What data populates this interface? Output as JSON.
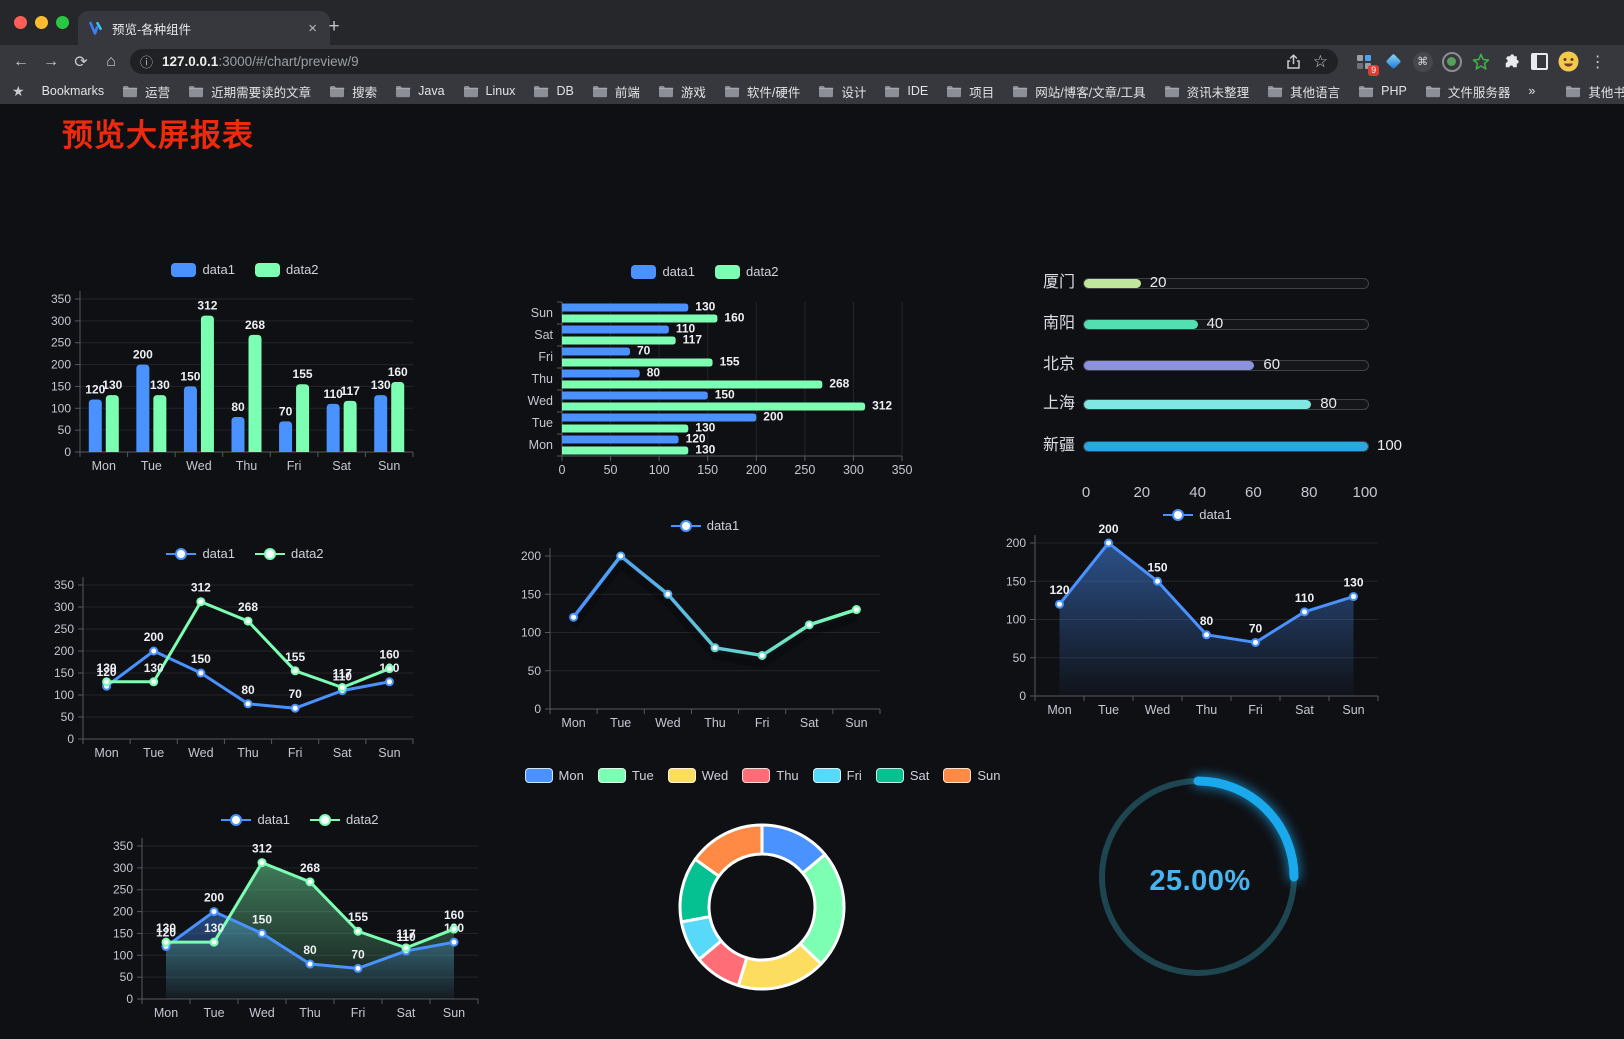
{
  "browser": {
    "window_controls": {
      "close": "#ff5f57",
      "minimize": "#febc2e",
      "maximize": "#28c840"
    },
    "tab": {
      "title": "预览-各种组件"
    },
    "toolbar": {
      "url_host": "127.0.0.1",
      "url_rest": ":3000/#/chart/preview/9"
    },
    "icons": {
      "back": "←",
      "forward": "→",
      "reload": "⟳",
      "home": "⌂",
      "info": "ⓘ",
      "close": "×",
      "new_tab": "+",
      "menu": "⋮",
      "command": "⌘",
      "bookmarks_star": "★",
      "bookmark_this_star": "☆",
      "extension_badge": "9",
      "overflow": "»"
    },
    "bookmarks": {
      "label": "Bookmarks",
      "folders": [
        "运营",
        "近期需要读的文章",
        "搜索",
        "Java",
        "Linux",
        "DB",
        "前端",
        "游戏",
        "软件/硬件",
        "设计",
        "IDE",
        "项目",
        "网站/博客/文章/工具",
        "资讯未整理",
        "其他语言",
        "PHP",
        "文件服务器"
      ],
      "overflow": "»",
      "other": "其他书签"
    }
  },
  "page": {
    "title": "预览大屏报表",
    "title_color": "#ee2a0c",
    "background": "#0f1014"
  },
  "colors": {
    "palette": [
      "#4992ff",
      "#7cffb2",
      "#fddd60",
      "#ff6e76",
      "#58d9f9",
      "#05c091",
      "#ff8a45"
    ],
    "axis_text": "#c6c7d1",
    "value_label": "#eef0f6"
  },
  "chart_data": [
    {
      "type": "bar",
      "legend_position": "top",
      "grid": true,
      "categories": [
        "Mon",
        "Tue",
        "Wed",
        "Thu",
        "Fri",
        "Sat",
        "Sun"
      ],
      "series": [
        {
          "name": "data1",
          "color": "#4992ff",
          "values": [
            120,
            200,
            150,
            80,
            70,
            110,
            130
          ]
        },
        {
          "name": "data2",
          "color": "#7cffb2",
          "values": [
            130,
            130,
            312,
            268,
            155,
            117,
            160
          ]
        }
      ],
      "ylim": [
        0,
        350
      ],
      "yticks": [
        0,
        50,
        100,
        150,
        200,
        250,
        300,
        350
      ]
    },
    {
      "type": "bar",
      "orientation": "horizontal",
      "legend_position": "top",
      "grid": true,
      "categories_top_to_bottom": [
        "Sun",
        "Sat",
        "Fri",
        "Thu",
        "Wed",
        "Tue",
        "Mon"
      ],
      "series": [
        {
          "name": "data1",
          "color": "#4992ff",
          "values_top_to_bottom": [
            130,
            110,
            70,
            80,
            150,
            200,
            120
          ]
        },
        {
          "name": "data2",
          "color": "#7cffb2",
          "values_top_to_bottom": [
            160,
            117,
            155,
            268,
            312,
            130,
            130
          ]
        }
      ],
      "xlim": [
        0,
        350
      ],
      "xticks": [
        0,
        50,
        100,
        150,
        200,
        250,
        300,
        350
      ]
    },
    {
      "type": "bar",
      "variant": "progress-list",
      "items": [
        {
          "label": "厦门",
          "value": 20,
          "color": "#c0e79b"
        },
        {
          "label": "南阳",
          "value": 40,
          "color": "#54dfb2"
        },
        {
          "label": "北京",
          "value": 60,
          "color": "#8d92e0"
        },
        {
          "label": "上海",
          "value": 80,
          "color": "#80e7e2"
        },
        {
          "label": "新疆",
          "value": 100,
          "color": "#2ba6de"
        }
      ],
      "max": 100,
      "axis_ticks": [
        0,
        20,
        40,
        60,
        80,
        100
      ]
    },
    {
      "type": "line",
      "legend_position": "top",
      "grid": true,
      "categories": [
        "Mon",
        "Tue",
        "Wed",
        "Thu",
        "Fri",
        "Sat",
        "Sun"
      ],
      "series": [
        {
          "name": "data1",
          "color": "#4992ff",
          "values": [
            120,
            200,
            150,
            80,
            70,
            110,
            130
          ]
        },
        {
          "name": "data2",
          "color": "#7cffb2",
          "values": [
            130,
            130,
            312,
            268,
            155,
            117,
            160
          ]
        }
      ],
      "ylim": [
        0,
        350
      ],
      "yticks": [
        0,
        50,
        100,
        150,
        200,
        250,
        300,
        350
      ],
      "labels": true
    },
    {
      "type": "line",
      "variant": "gradient-stroke",
      "legend_position": "top",
      "grid": true,
      "categories": [
        "Mon",
        "Tue",
        "Wed",
        "Thu",
        "Fri",
        "Sat",
        "Sun"
      ],
      "series": [
        {
          "name": "data1",
          "gradient": [
            "#4992ff",
            "#7cffb2"
          ],
          "values": [
            120,
            200,
            150,
            80,
            70,
            110,
            130
          ]
        }
      ],
      "ylim": [
        0,
        200
      ],
      "yticks": [
        0,
        50,
        100,
        150,
        200
      ],
      "labels": false
    },
    {
      "type": "area",
      "legend_position": "top",
      "grid": true,
      "categories": [
        "Mon",
        "Tue",
        "Wed",
        "Thu",
        "Fri",
        "Sat",
        "Sun"
      ],
      "series": [
        {
          "name": "data1",
          "color": "#4992ff",
          "values": [
            120,
            200,
            150,
            80,
            70,
            110,
            130
          ]
        }
      ],
      "ylim": [
        0,
        200
      ],
      "yticks": [
        0,
        50,
        100,
        150,
        200
      ],
      "labels": true
    },
    {
      "type": "area",
      "legend_position": "top",
      "grid": true,
      "categories": [
        "Mon",
        "Tue",
        "Wed",
        "Thu",
        "Fri",
        "Sat",
        "Sun"
      ],
      "series": [
        {
          "name": "data1",
          "color": "#4992ff",
          "values": [
            120,
            200,
            150,
            80,
            70,
            110,
            130
          ]
        },
        {
          "name": "data2",
          "color": "#7cffb2",
          "values": [
            130,
            130,
            312,
            268,
            155,
            117,
            160
          ]
        }
      ],
      "ylim": [
        0,
        350
      ],
      "yticks": [
        0,
        50,
        100,
        150,
        200,
        250,
        300,
        350
      ],
      "labels": true
    },
    {
      "type": "pie",
      "variant": "donut",
      "legend_position": "top",
      "labels": [
        "Mon",
        "Tue",
        "Wed",
        "Thu",
        "Fri",
        "Sat",
        "Sun"
      ],
      "values": [
        120,
        200,
        150,
        80,
        70,
        110,
        130
      ],
      "colors": [
        "#4992ff",
        "#7cffb2",
        "#fddd60",
        "#ff6e76",
        "#58d9f9",
        "#05c091",
        "#ff8a45"
      ],
      "border_color": "#ffffff"
    },
    {
      "type": "gauge",
      "value": 25,
      "max": 100,
      "display": "25.00%",
      "color": "#1aa9ec",
      "track_color": "#1d4650"
    }
  ]
}
